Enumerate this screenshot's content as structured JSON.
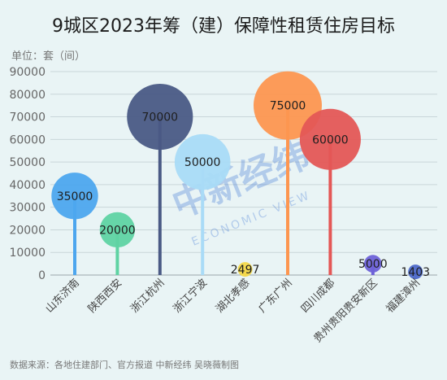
{
  "title": "9城区2023年筹（建）保障性租赁住房目标",
  "unit_label": "单位：套（间）",
  "source": "数据来源：各地住建部门、官方报道 中新经纬 吴晓薇制图",
  "watermark": {
    "brand": "中新经纬",
    "sub": "ECONOMIC VIEW"
  },
  "chart_data": {
    "type": "bubble-lollipop",
    "categories": [
      "山东济南",
      "陕西西安",
      "浙江杭州",
      "浙江宁波",
      "湖北孝感",
      "广东广州",
      "四川成都",
      "贵州贵阳贵安新区",
      "福建漳州"
    ],
    "values": [
      35000,
      20000,
      70000,
      50000,
      2497,
      75000,
      60000,
      5000,
      1403
    ],
    "colors": [
      "#4da6ee",
      "#5fd3a3",
      "#4a5a85",
      "#a9dbf7",
      "#f3d84a",
      "#fd9650",
      "#e45756",
      "#6e62d8",
      "#4d68c9"
    ],
    "yticks": [
      0,
      10000,
      20000,
      30000,
      40000,
      50000,
      60000,
      70000,
      80000,
      90000
    ],
    "ylim": [
      0,
      90000
    ],
    "grid": true
  }
}
